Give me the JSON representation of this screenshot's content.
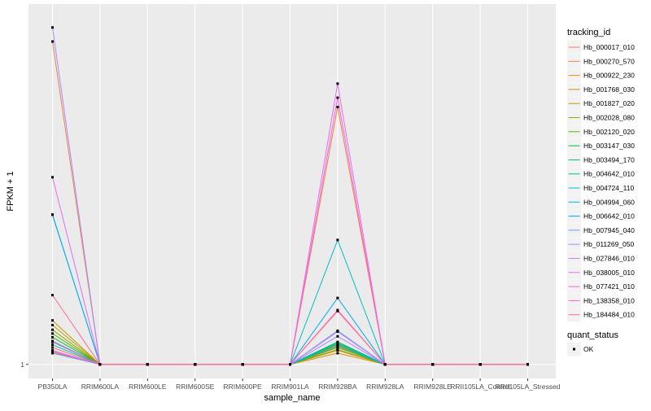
{
  "chart_data": {
    "type": "line",
    "xlabel": "sample_name",
    "ylabel": "FPKM + 1",
    "y_ticks": [
      "1"
    ],
    "categories": [
      "PB350LA",
      "RRIM600LA",
      "RRIM600LE",
      "RRIM600SE",
      "RRIM600PE",
      "RRIM901LA",
      "RRIM928BA",
      "RRIM928LA",
      "RRIM928LE",
      "RRII105LA_Control",
      "RRII105LA_Stressed"
    ],
    "ylim": [
      0.985,
      1.385
    ],
    "legend": {
      "title": "tracking_id",
      "position": "right"
    },
    "shape_legend": {
      "title": "quant_status",
      "items": [
        "OK"
      ]
    },
    "series": [
      {
        "name": "Hb_000017_010",
        "color": "#F8766D",
        "values": [
          1.018,
          1,
          1,
          1,
          1,
          1,
          1.02,
          1,
          1,
          1,
          1
        ]
      },
      {
        "name": "Hb_000270_570",
        "color": "#EE8043",
        "values": [
          1.345,
          1,
          1,
          1,
          1,
          1,
          1.275,
          1,
          1,
          1,
          1
        ]
      },
      {
        "name": "Hb_000922_230",
        "color": "#E08B00",
        "values": [
          1.013,
          1,
          1,
          1,
          1,
          1,
          1.012,
          1,
          1,
          1,
          1
        ]
      },
      {
        "name": "Hb_001768_030",
        "color": "#CB9600",
        "values": [
          1.047,
          1,
          1,
          1,
          1,
          1,
          1.015,
          1,
          1,
          1,
          1
        ]
      },
      {
        "name": "Hb_001827_020",
        "color": "#B09F00",
        "values": [
          1.042,
          1,
          1,
          1,
          1,
          1,
          1.018,
          1,
          1,
          1,
          1
        ]
      },
      {
        "name": "Hb_002028_080",
        "color": "#8EA700",
        "values": [
          1.037,
          1,
          1,
          1,
          1,
          1,
          1.016,
          1,
          1,
          1,
          1
        ]
      },
      {
        "name": "Hb_002120_020",
        "color": "#5BB300",
        "values": [
          1.033,
          1,
          1,
          1,
          1,
          1,
          1.021,
          1,
          1,
          1,
          1
        ]
      },
      {
        "name": "Hb_003147_030",
        "color": "#00BA38",
        "values": [
          1.029,
          1,
          1,
          1,
          1,
          1,
          1.024,
          1,
          1,
          1,
          1
        ]
      },
      {
        "name": "Hb_003494_170",
        "color": "#00BF74",
        "values": [
          1.025,
          1,
          1,
          1,
          1,
          1,
          1.022,
          1,
          1,
          1,
          1
        ]
      },
      {
        "name": "Hb_004642_010",
        "color": "#00C19C",
        "values": [
          1.021,
          1,
          1,
          1,
          1,
          1,
          1.019,
          1,
          1,
          1,
          1
        ]
      },
      {
        "name": "Hb_004724_110",
        "color": "#00BFC4",
        "values": [
          1.16,
          1,
          1,
          1,
          1,
          1,
          1.133,
          1,
          1,
          1,
          1
        ]
      },
      {
        "name": "Hb_004994_060",
        "color": "#00B8E7",
        "values": [
          1.024,
          1,
          1,
          1,
          1,
          1,
          1.023,
          1,
          1,
          1,
          1
        ]
      },
      {
        "name": "Hb_006642_010",
        "color": "#00A9FF",
        "values": [
          1.16,
          1,
          1,
          1,
          1,
          1,
          1.071,
          1,
          1,
          1,
          1
        ]
      },
      {
        "name": "Hb_007945_040",
        "color": "#619CFF",
        "values": [
          1.012,
          1,
          1,
          1,
          1,
          1,
          1.036,
          1,
          1,
          1,
          1
        ]
      },
      {
        "name": "Hb_011269_050",
        "color": "#A58AFF",
        "values": [
          1.36,
          1,
          1,
          1,
          1,
          1,
          1.03,
          1,
          1,
          1,
          1
        ]
      },
      {
        "name": "Hb_027846_010",
        "color": "#C77CFF",
        "values": [
          1.015,
          1,
          1,
          1,
          1,
          1,
          1.035,
          1,
          1,
          1,
          1
        ]
      },
      {
        "name": "Hb_038005_010",
        "color": "#E76BF3",
        "values": [
          1.2,
          1,
          1,
          1,
          1,
          1,
          1.3,
          1,
          1,
          1,
          1
        ]
      },
      {
        "name": "Hb_077421_010",
        "color": "#FA62DB",
        "values": [
          1.014,
          1,
          1,
          1,
          1,
          1,
          1.285,
          1,
          1,
          1,
          1
        ]
      },
      {
        "name": "Hb_138358_010",
        "color": "#FF62BC",
        "values": [
          1.025,
          1,
          1,
          1,
          1,
          1,
          1.058,
          1,
          1,
          1,
          1
        ]
      },
      {
        "name": "Hb_184484_010",
        "color": "#FF6C91",
        "values": [
          1.074,
          1,
          1,
          1,
          1,
          1,
          1.057,
          1,
          1,
          1,
          1
        ]
      }
    ]
  }
}
